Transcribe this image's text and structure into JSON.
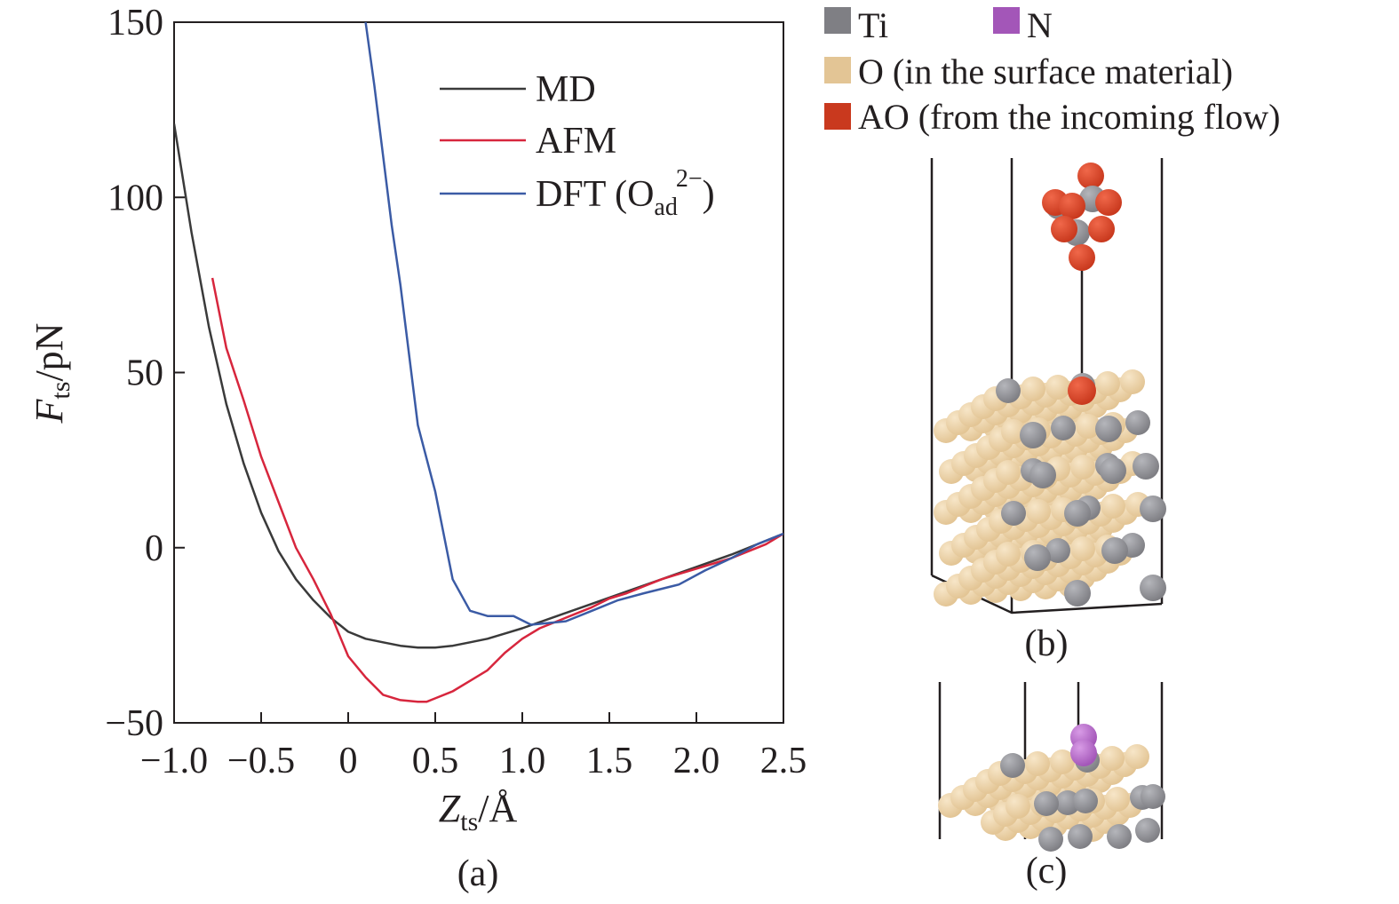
{
  "chart_data": {
    "type": "line",
    "xlabel": {
      "main": "Z",
      "sub": "ts",
      "rest": "/Å"
    },
    "ylabel": {
      "main": "F",
      "sub": "ts",
      "rest": "/pN"
    },
    "xlim": [
      -1.0,
      2.5
    ],
    "ylim": [
      -50,
      150
    ],
    "xticks": [
      -1.0,
      -0.5,
      0,
      0.5,
      1.0,
      1.5,
      2.0,
      2.5
    ],
    "xtick_labels": [
      "−1.0",
      "−0.5",
      "0",
      "0.5",
      "1.0",
      "1.5",
      "2.0",
      "2.5"
    ],
    "yticks": [
      -50,
      0,
      50,
      100,
      150
    ],
    "ytick_labels": [
      "−50",
      "0",
      "50",
      "100",
      "150"
    ],
    "grid": false,
    "legend_position": "top-right",
    "series": [
      {
        "name": "MD",
        "color": "#3a3a3a",
        "x": [
          -1.0,
          -0.9,
          -0.8,
          -0.7,
          -0.6,
          -0.5,
          -0.4,
          -0.3,
          -0.2,
          -0.1,
          0.0,
          0.1,
          0.2,
          0.3,
          0.4,
          0.5,
          0.6,
          0.7,
          0.8,
          0.9,
          1.0,
          1.2,
          1.4,
          1.6,
          1.8,
          2.0,
          2.2,
          2.4,
          2.5
        ],
        "y": [
          121,
          90,
          63,
          41,
          24,
          10,
          -1,
          -9,
          -15,
          -20,
          -24,
          -26,
          -27,
          -28,
          -28.5,
          -28.5,
          -28,
          -27,
          -26,
          -24.5,
          -23,
          -19.5,
          -16,
          -12.5,
          -9,
          -5.5,
          -2,
          2,
          4
        ]
      },
      {
        "name": "AFM",
        "color": "#d7263d",
        "x": [
          -0.78,
          -0.7,
          -0.6,
          -0.5,
          -0.4,
          -0.3,
          -0.2,
          -0.1,
          0.0,
          0.1,
          0.2,
          0.3,
          0.4,
          0.45,
          0.5,
          0.6,
          0.7,
          0.8,
          0.9,
          1.0,
          1.1,
          1.2,
          1.3,
          1.4,
          1.5,
          1.6,
          1.7,
          1.8,
          1.9,
          2.0,
          2.1,
          2.2,
          2.3,
          2.4,
          2.5
        ],
        "y": [
          77,
          57,
          42,
          26,
          13,
          0,
          -9,
          -19,
          -31,
          -37,
          -42,
          -43.5,
          -44,
          -44,
          -43,
          -41,
          -38,
          -35,
          -30,
          -26,
          -23,
          -21,
          -19,
          -17,
          -14.5,
          -13,
          -11,
          -9,
          -7.5,
          -6,
          -4.5,
          -3,
          -1,
          1,
          4
        ]
      },
      {
        "name": "DFT (O_ad^2−)",
        "legend_main": "DFT (O",
        "legend_sub": "ad",
        "legend_sup": "2−",
        "legend_close": ")",
        "color": "#3b5ba5",
        "x": [
          0.1,
          0.15,
          0.2,
          0.25,
          0.3,
          0.35,
          0.4,
          0.5,
          0.6,
          0.7,
          0.8,
          0.95,
          1.05,
          1.25,
          1.4,
          1.55,
          1.7,
          1.9,
          2.05,
          2.2,
          2.35,
          2.5
        ],
        "y": [
          150,
          132,
          112,
          92,
          75,
          55,
          35,
          16,
          -9,
          -18,
          -19.5,
          -19.5,
          -22,
          -21,
          -18,
          -15,
          -13,
          -10.5,
          -6.5,
          -3,
          1,
          4
        ]
      }
    ]
  },
  "panel_labels": {
    "a": "(a)",
    "b": "(b)",
    "c": "(c)"
  },
  "atom_legend": {
    "ti": {
      "label": "Ti",
      "color": "#7f7f84"
    },
    "n": {
      "label": "N",
      "color": "#a356b8"
    },
    "o": {
      "label": "O (in the surface material)",
      "color": "#e3c595"
    },
    "ao": {
      "label": "AO (from the incoming flow)",
      "color": "#c9391e"
    }
  }
}
